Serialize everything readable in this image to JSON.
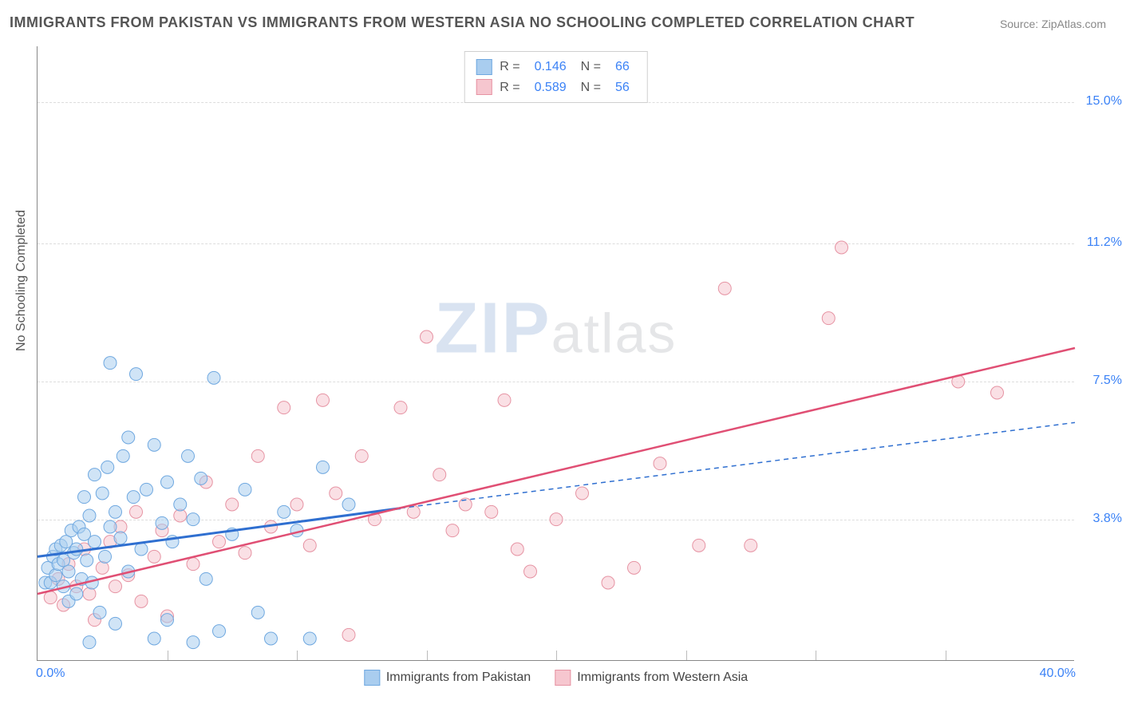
{
  "title": "IMMIGRANTS FROM PAKISTAN VS IMMIGRANTS FROM WESTERN ASIA NO SCHOOLING COMPLETED CORRELATION CHART",
  "source": "Source: ZipAtlas.com",
  "ylabel": "No Schooling Completed",
  "chart": {
    "type": "scatter",
    "xlim": [
      0,
      40
    ],
    "ylim": [
      0,
      16.5
    ],
    "yticks": [
      3.8,
      7.5,
      11.2,
      15.0
    ],
    "xticks": [
      0.0,
      40.0
    ],
    "xtick_labels": [
      "0.0%",
      "40.0%"
    ],
    "ytick_labels": [
      "3.8%",
      "7.5%",
      "11.2%",
      "15.0%"
    ],
    "xticks_minor_count": 7,
    "background_color": "#ffffff",
    "grid_color": "#dddddd",
    "grid_dash": "dashed",
    "axis_color": "#888888"
  },
  "series": {
    "pakistan": {
      "label": "Immigrants from Pakistan",
      "color_fill": "#a9cdef",
      "color_stroke": "#6fa8e0",
      "line_color": "#2f6fd0",
      "marker_radius": 8,
      "marker_opacity": 0.55,
      "R": "0.146",
      "N": "66",
      "trend": {
        "x1": 0,
        "y1": 2.8,
        "x2": 14,
        "y2": 4.1,
        "x_extent": 40,
        "y_extent": 6.4,
        "dash_after_x": 14
      },
      "points": [
        [
          0.3,
          2.1
        ],
        [
          0.4,
          2.5
        ],
        [
          0.5,
          2.1
        ],
        [
          0.6,
          2.8
        ],
        [
          0.7,
          2.3
        ],
        [
          0.7,
          3.0
        ],
        [
          0.8,
          2.6
        ],
        [
          0.9,
          3.1
        ],
        [
          1.0,
          2.0
        ],
        [
          1.0,
          2.7
        ],
        [
          1.1,
          3.2
        ],
        [
          1.2,
          1.6
        ],
        [
          1.2,
          2.4
        ],
        [
          1.3,
          3.5
        ],
        [
          1.4,
          2.9
        ],
        [
          1.5,
          1.8
        ],
        [
          1.5,
          3.0
        ],
        [
          1.6,
          3.6
        ],
        [
          1.7,
          2.2
        ],
        [
          1.8,
          3.4
        ],
        [
          1.8,
          4.4
        ],
        [
          1.9,
          2.7
        ],
        [
          2.0,
          0.5
        ],
        [
          2.0,
          3.9
        ],
        [
          2.1,
          2.1
        ],
        [
          2.2,
          5.0
        ],
        [
          2.2,
          3.2
        ],
        [
          2.4,
          1.3
        ],
        [
          2.5,
          4.5
        ],
        [
          2.6,
          2.8
        ],
        [
          2.7,
          5.2
        ],
        [
          2.8,
          3.6
        ],
        [
          2.8,
          8.0
        ],
        [
          3.0,
          1.0
        ],
        [
          3.0,
          4.0
        ],
        [
          3.2,
          3.3
        ],
        [
          3.3,
          5.5
        ],
        [
          3.5,
          2.4
        ],
        [
          3.5,
          6.0
        ],
        [
          3.7,
          4.4
        ],
        [
          3.8,
          7.7
        ],
        [
          4.0,
          3.0
        ],
        [
          4.2,
          4.6
        ],
        [
          4.5,
          5.8
        ],
        [
          4.5,
          0.6
        ],
        [
          4.8,
          3.7
        ],
        [
          5.0,
          4.8
        ],
        [
          5.0,
          1.1
        ],
        [
          5.2,
          3.2
        ],
        [
          5.5,
          4.2
        ],
        [
          5.8,
          5.5
        ],
        [
          6.0,
          0.5
        ],
        [
          6.0,
          3.8
        ],
        [
          6.3,
          4.9
        ],
        [
          6.5,
          2.2
        ],
        [
          6.8,
          7.6
        ],
        [
          7.0,
          0.8
        ],
        [
          7.5,
          3.4
        ],
        [
          8.0,
          4.6
        ],
        [
          8.5,
          1.3
        ],
        [
          9.0,
          0.6
        ],
        [
          9.5,
          4.0
        ],
        [
          10.0,
          3.5
        ],
        [
          10.5,
          0.6
        ],
        [
          11.0,
          5.2
        ],
        [
          12.0,
          4.2
        ]
      ]
    },
    "western_asia": {
      "label": "Immigrants from Western Asia",
      "color_fill": "#f6c6cf",
      "color_stroke": "#e693a3",
      "line_color": "#e04f74",
      "marker_radius": 8,
      "marker_opacity": 0.55,
      "R": "0.589",
      "N": "56",
      "trend": {
        "x1": 0,
        "y1": 1.8,
        "x2": 40,
        "y2": 8.4,
        "dash_after_x": 40
      },
      "points": [
        [
          0.5,
          1.7
        ],
        [
          0.8,
          2.2
        ],
        [
          1.0,
          1.5
        ],
        [
          1.2,
          2.6
        ],
        [
          1.5,
          2.0
        ],
        [
          1.8,
          3.0
        ],
        [
          2.0,
          1.8
        ],
        [
          2.2,
          1.1
        ],
        [
          2.5,
          2.5
        ],
        [
          2.8,
          3.2
        ],
        [
          3.0,
          2.0
        ],
        [
          3.2,
          3.6
        ],
        [
          3.5,
          2.3
        ],
        [
          3.8,
          4.0
        ],
        [
          4.0,
          1.6
        ],
        [
          4.5,
          2.8
        ],
        [
          4.8,
          3.5
        ],
        [
          5.0,
          1.2
        ],
        [
          5.5,
          3.9
        ],
        [
          6.0,
          2.6
        ],
        [
          6.5,
          4.8
        ],
        [
          7.0,
          3.2
        ],
        [
          7.5,
          4.2
        ],
        [
          8.0,
          2.9
        ],
        [
          8.5,
          5.5
        ],
        [
          9.0,
          3.6
        ],
        [
          9.5,
          6.8
        ],
        [
          10.0,
          4.2
        ],
        [
          10.5,
          3.1
        ],
        [
          11.0,
          7.0
        ],
        [
          11.5,
          4.5
        ],
        [
          12.0,
          0.7
        ],
        [
          12.5,
          5.5
        ],
        [
          13.0,
          3.8
        ],
        [
          14.0,
          6.8
        ],
        [
          14.5,
          4.0
        ],
        [
          15.0,
          8.7
        ],
        [
          15.5,
          5.0
        ],
        [
          16.0,
          3.5
        ],
        [
          16.5,
          4.2
        ],
        [
          17.5,
          4.0
        ],
        [
          18.0,
          7.0
        ],
        [
          18.5,
          3.0
        ],
        [
          19.0,
          2.4
        ],
        [
          20.0,
          3.8
        ],
        [
          21.0,
          4.5
        ],
        [
          22.0,
          2.1
        ],
        [
          23.0,
          2.5
        ],
        [
          24.0,
          5.3
        ],
        [
          25.5,
          3.1
        ],
        [
          26.5,
          10.0
        ],
        [
          27.5,
          3.1
        ],
        [
          30.5,
          9.2
        ],
        [
          31.0,
          11.1
        ],
        [
          35.5,
          7.5
        ],
        [
          37.0,
          7.2
        ]
      ]
    }
  },
  "watermark": {
    "part1": "ZIP",
    "part2": "atlas"
  }
}
